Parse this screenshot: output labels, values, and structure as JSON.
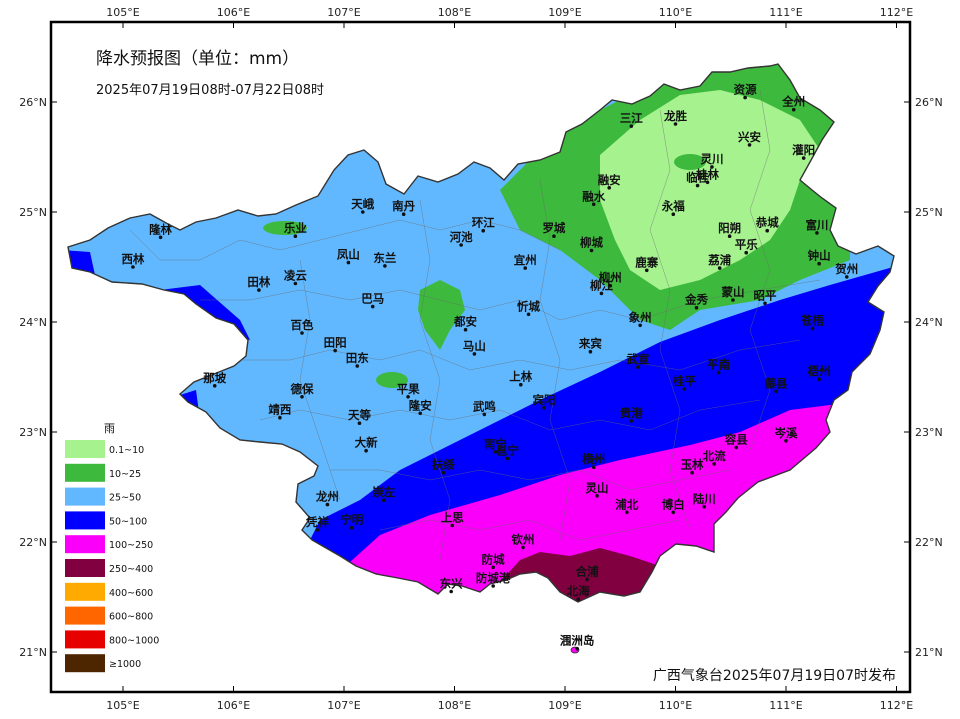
{
  "map": {
    "title": "降水预报图（单位：mm）",
    "period": "2025年07月19日08时-07月22日08时",
    "issuer": "广西气象台2025年07月19日07时发布"
  },
  "axes": {
    "top": [
      "105°E",
      "106°E",
      "107°E",
      "108°E",
      "109°E",
      "110°E",
      "111°E",
      "112°E"
    ],
    "bottom": [
      "105°E",
      "106°E",
      "107°E",
      "108°E",
      "109°E",
      "110°E",
      "111°E",
      "112°E"
    ],
    "left": [
      "26°N",
      "25°N",
      "24°N",
      "23°N",
      "22°N",
      "21°N"
    ],
    "right": [
      "26°N",
      "25°N",
      "24°N",
      "23°N",
      "22°N",
      "21°N"
    ]
  },
  "legend": {
    "title": "雨",
    "items": [
      {
        "label": "0.1~10",
        "color": "#a6f28f"
      },
      {
        "label": "10~25",
        "color": "#3dba3d"
      },
      {
        "label": "25~50",
        "color": "#61b8ff"
      },
      {
        "label": "50~100",
        "color": "#0000fe"
      },
      {
        "label": "100~250",
        "color": "#fa00fa"
      },
      {
        "label": "250~400",
        "color": "#800040"
      },
      {
        "label": "400~600",
        "color": "#ffaa00"
      },
      {
        "label": "600~800",
        "color": "#ff6600"
      },
      {
        "label": "800~1000",
        "color": "#e60000"
      },
      {
        "label": "≥1000",
        "color": "#4d2600"
      }
    ]
  },
  "cities": [
    {
      "name": "资源",
      "lon": 110.63,
      "lat": 26.04
    },
    {
      "name": "全州",
      "lon": 111.07,
      "lat": 25.93
    },
    {
      "name": "三江",
      "lon": 109.6,
      "lat": 25.78
    },
    {
      "name": "龙胜",
      "lon": 110.0,
      "lat": 25.8
    },
    {
      "name": "兴安",
      "lon": 110.67,
      "lat": 25.61
    },
    {
      "name": "灌阳",
      "lon": 111.16,
      "lat": 25.49
    },
    {
      "name": "灵川",
      "lon": 110.33,
      "lat": 25.41
    },
    {
      "name": "桂林",
      "lon": 110.29,
      "lat": 25.27
    },
    {
      "name": "临桂",
      "lon": 110.2,
      "lat": 25.24
    },
    {
      "name": "融安",
      "lon": 109.4,
      "lat": 25.22
    },
    {
      "name": "融水",
      "lon": 109.26,
      "lat": 25.07
    },
    {
      "name": "永福",
      "lon": 109.98,
      "lat": 24.98
    },
    {
      "name": "天峨",
      "lon": 107.17,
      "lat": 25.0
    },
    {
      "name": "南丹",
      "lon": 107.54,
      "lat": 24.98
    },
    {
      "name": "恭城",
      "lon": 110.83,
      "lat": 24.83
    },
    {
      "name": "富川",
      "lon": 111.28,
      "lat": 24.81
    },
    {
      "name": "隆林",
      "lon": 105.34,
      "lat": 24.77
    },
    {
      "name": "乐业",
      "lon": 106.56,
      "lat": 24.78
    },
    {
      "name": "河池",
      "lon": 108.06,
      "lat": 24.7
    },
    {
      "name": "环江",
      "lon": 108.26,
      "lat": 24.83
    },
    {
      "name": "罗城",
      "lon": 108.9,
      "lat": 24.78
    },
    {
      "name": "阳朔",
      "lon": 110.49,
      "lat": 24.78
    },
    {
      "name": "平乐",
      "lon": 110.64,
      "lat": 24.63
    },
    {
      "name": "柳城",
      "lon": 109.24,
      "lat": 24.65
    },
    {
      "name": "西林",
      "lon": 105.09,
      "lat": 24.5
    },
    {
      "name": "凤山",
      "lon": 107.04,
      "lat": 24.54
    },
    {
      "name": "东兰",
      "lon": 107.37,
      "lat": 24.51
    },
    {
      "name": "宜州",
      "lon": 108.64,
      "lat": 24.49
    },
    {
      "name": "鹿寨",
      "lon": 109.74,
      "lat": 24.47
    },
    {
      "name": "荔浦",
      "lon": 110.4,
      "lat": 24.49
    },
    {
      "name": "钟山",
      "lon": 111.3,
      "lat": 24.53
    },
    {
      "name": "贺州",
      "lon": 111.55,
      "lat": 24.41
    },
    {
      "name": "柳州",
      "lon": 109.41,
      "lat": 24.33
    },
    {
      "name": "柳江",
      "lon": 109.33,
      "lat": 24.26
    },
    {
      "name": "田林",
      "lon": 106.23,
      "lat": 24.29
    },
    {
      "name": "凌云",
      "lon": 106.56,
      "lat": 24.35
    },
    {
      "name": "巴马",
      "lon": 107.26,
      "lat": 24.14
    },
    {
      "name": "蒙山",
      "lon": 110.52,
      "lat": 24.2
    },
    {
      "name": "昭平",
      "lon": 110.81,
      "lat": 24.17
    },
    {
      "name": "金秀",
      "lon": 110.19,
      "lat": 24.13
    },
    {
      "name": "忻城",
      "lon": 108.67,
      "lat": 24.07
    },
    {
      "name": "象州",
      "lon": 109.68,
      "lat": 23.97
    },
    {
      "name": "都安",
      "lon": 108.1,
      "lat": 23.93
    },
    {
      "name": "苍梧",
      "lon": 111.24,
      "lat": 23.94
    },
    {
      "name": "百色",
      "lon": 106.62,
      "lat": 23.9
    },
    {
      "name": "来宾",
      "lon": 109.23,
      "lat": 23.73
    },
    {
      "name": "田阳",
      "lon": 106.92,
      "lat": 23.74
    },
    {
      "name": "马山",
      "lon": 108.18,
      "lat": 23.71
    },
    {
      "name": "田东",
      "lon": 107.12,
      "lat": 23.6
    },
    {
      "name": "武宣",
      "lon": 109.66,
      "lat": 23.59
    },
    {
      "name": "平南",
      "lon": 110.39,
      "lat": 23.54
    },
    {
      "name": "梧州",
      "lon": 111.3,
      "lat": 23.48
    },
    {
      "name": "那坡",
      "lon": 105.83,
      "lat": 23.42
    },
    {
      "name": "桂平",
      "lon": 110.08,
      "lat": 23.39
    },
    {
      "name": "上林",
      "lon": 108.6,
      "lat": 23.43
    },
    {
      "name": "德保",
      "lon": 106.62,
      "lat": 23.32
    },
    {
      "name": "平果",
      "lon": 107.58,
      "lat": 23.32
    },
    {
      "name": "藤县",
      "lon": 110.91,
      "lat": 23.37
    },
    {
      "name": "宾阳",
      "lon": 108.81,
      "lat": 23.22
    },
    {
      "name": "靖西",
      "lon": 106.42,
      "lat": 23.13
    },
    {
      "name": "隆安",
      "lon": 107.69,
      "lat": 23.17
    },
    {
      "name": "武鸣",
      "lon": 108.27,
      "lat": 23.16
    },
    {
      "name": "贵港",
      "lon": 109.6,
      "lat": 23.1
    },
    {
      "name": "天等",
      "lon": 107.14,
      "lat": 23.08
    },
    {
      "name": "岑溪",
      "lon": 111.0,
      "lat": 22.92
    },
    {
      "name": "容县",
      "lon": 110.55,
      "lat": 22.86
    },
    {
      "name": "大新",
      "lon": 107.2,
      "lat": 22.83
    },
    {
      "name": "南宁",
      "lon": 108.37,
      "lat": 22.82
    },
    {
      "name": "邕宁",
      "lon": 108.48,
      "lat": 22.76
    },
    {
      "name": "横州",
      "lon": 109.26,
      "lat": 22.68
    },
    {
      "name": "北流",
      "lon": 110.35,
      "lat": 22.71
    },
    {
      "name": "玉林",
      "lon": 110.15,
      "lat": 22.63
    },
    {
      "name": "扶绥",
      "lon": 107.9,
      "lat": 22.63
    },
    {
      "name": "灵山",
      "lon": 109.29,
      "lat": 22.42
    },
    {
      "name": "崇左",
      "lon": 107.36,
      "lat": 22.38
    },
    {
      "name": "龙州",
      "lon": 106.85,
      "lat": 22.34
    },
    {
      "name": "陆川",
      "lon": 110.26,
      "lat": 22.32
    },
    {
      "name": "博白",
      "lon": 109.98,
      "lat": 22.27
    },
    {
      "name": "浦北",
      "lon": 109.56,
      "lat": 22.27
    },
    {
      "name": "上思",
      "lon": 107.98,
      "lat": 22.15
    },
    {
      "name": "宁明",
      "lon": 107.07,
      "lat": 22.13
    },
    {
      "name": "凭祥",
      "lon": 106.76,
      "lat": 22.11
    },
    {
      "name": "钦州",
      "lon": 108.62,
      "lat": 21.95
    },
    {
      "name": "防城",
      "lon": 108.35,
      "lat": 21.77
    },
    {
      "name": "合浦",
      "lon": 109.2,
      "lat": 21.66
    },
    {
      "name": "防城港",
      "lon": 108.35,
      "lat": 21.6
    },
    {
      "name": "东兴",
      "lon": 107.97,
      "lat": 21.55
    },
    {
      "name": "北海",
      "lon": 109.12,
      "lat": 21.48
    },
    {
      "name": "涠洲岛",
      "lon": 109.11,
      "lat": 21.03
    }
  ]
}
